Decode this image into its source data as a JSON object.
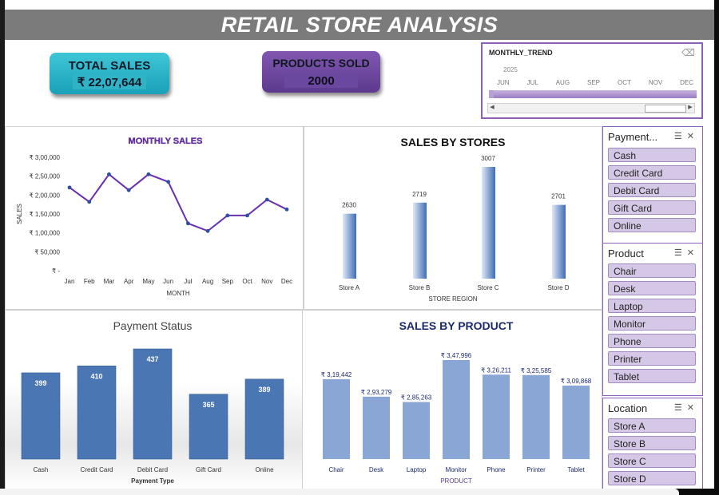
{
  "title": "RETAIL STORE ANALYSIS",
  "kpis": {
    "total_sales_label": "TOTAL SALES",
    "total_sales_value": "₹ 22,07,644",
    "products_sold_label": "PRODUCTS SOLD",
    "products_sold_value": "2000"
  },
  "timeline": {
    "title": "MONTHLY_TREND",
    "year": "2025",
    "months": [
      "JUN",
      "JUL",
      "AUG",
      "SEP",
      "OCT",
      "NOV",
      "DEC"
    ]
  },
  "slicers": {
    "payment": {
      "title": "Payment...",
      "items": [
        "Cash",
        "Credit Card",
        "Debit Card",
        "Gift Card",
        "Online"
      ]
    },
    "product": {
      "title": "Product",
      "items": [
        "Chair",
        "Desk",
        "Laptop",
        "Monitor",
        "Phone",
        "Printer",
        "Tablet"
      ]
    },
    "location": {
      "title": "Location",
      "items": [
        "Store A",
        "Store B",
        "Store C",
        "Store D"
      ]
    }
  },
  "colors": {
    "accent_purple": "#6a2eb0",
    "bar_blue": "#4a76b4",
    "product_bar": "#8aa6d4",
    "slicer_item": "#d5c8e6"
  },
  "chart_data": [
    {
      "id": "monthly",
      "type": "line",
      "title": "MONTHLY SALES",
      "xlabel": "MONTH",
      "ylabel": "SALES",
      "categories": [
        "Jan",
        "Feb",
        "Mar",
        "Apr",
        "May",
        "Jun",
        "Jul",
        "Aug",
        "Sep",
        "Oct",
        "Nov",
        "Dec"
      ],
      "values": [
        220000,
        182000,
        255000,
        213000,
        255000,
        235000,
        125000,
        105000,
        146000,
        146000,
        188000,
        162000
      ],
      "ylim": [
        0,
        300000
      ],
      "yticks": [
        "₹ -",
        "₹ 50,000",
        "₹ 1,00,000",
        "₹ 1,50,000",
        "₹ 2,00,000",
        "₹ 2,50,000",
        "₹ 3,00,000"
      ],
      "grid": false
    },
    {
      "id": "stores",
      "type": "bar",
      "title": "SALES BY STORES",
      "xlabel": "STORE REGION",
      "categories": [
        "Store A",
        "Store B",
        "Store C",
        "Store D"
      ],
      "values": [
        2630,
        2719,
        3007,
        2701
      ],
      "grid": false
    },
    {
      "id": "payment",
      "type": "bar",
      "title": "Payment Status",
      "xlabel": "Payment Type",
      "categories": [
        "Cash",
        "Credit Card",
        "Debit Card",
        "Gift Card",
        "Online"
      ],
      "values": [
        399,
        410,
        437,
        365,
        389
      ],
      "grid": false
    },
    {
      "id": "product",
      "type": "bar",
      "title": "SALES BY PRODUCT",
      "xlabel": "PRODUCT",
      "categories": [
        "Chair",
        "Desk",
        "Laptop",
        "Monitor",
        "Phone",
        "Printer",
        "Tablet"
      ],
      "values": [
        319442,
        293279,
        285263,
        347996,
        326211,
        325585,
        309868
      ],
      "labels": [
        "₹ 3,19,442",
        "₹ 2,93,279",
        "₹ 2,85,263",
        "₹ 3,47,996",
        "₹ 3,26,211",
        "₹ 3,25,585",
        "₹ 3,09,868"
      ],
      "grid": false
    }
  ]
}
